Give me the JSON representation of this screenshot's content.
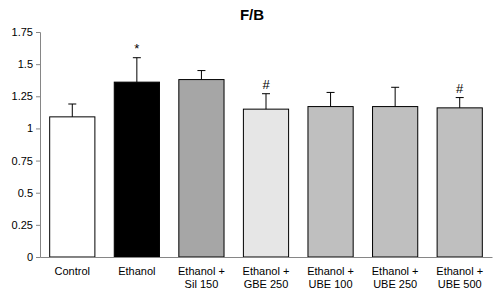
{
  "chart_data": {
    "type": "bar",
    "title": "F/B",
    "categories": [
      "Control",
      "Ethanol",
      "Ethanol + Sil 150",
      "Ethanol + GBE 250",
      "Ethanol + UBE 100",
      "Ethanol + UBE 250",
      "Ethanol + UBE 500"
    ],
    "values": [
      1.09,
      1.36,
      1.38,
      1.15,
      1.17,
      1.17,
      1.16
    ],
    "errors": [
      0.1,
      0.19,
      0.07,
      0.12,
      0.11,
      0.15,
      0.08
    ],
    "annotations": [
      null,
      "*",
      null,
      "#",
      null,
      null,
      "#"
    ],
    "colors": [
      "#ffffff",
      "#000000",
      "#a6a6a6",
      "#e6e6e6",
      "#bfbfbf",
      "#bfbfbf",
      "#bfbfbf"
    ],
    "ylim": [
      0,
      1.75
    ],
    "yticks": [
      0,
      0.25,
      0.5,
      0.75,
      1,
      1.25,
      1.5,
      1.75
    ],
    "grid": false
  }
}
